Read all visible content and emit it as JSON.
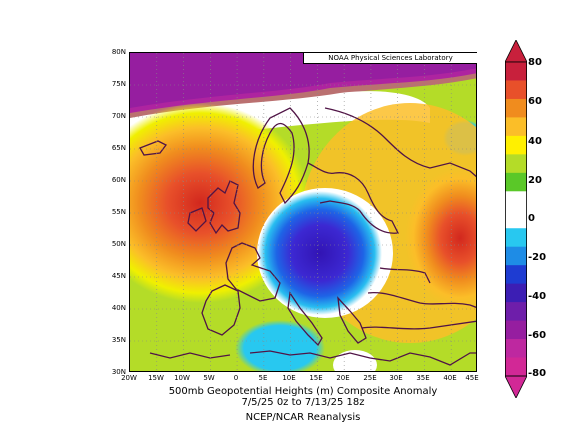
{
  "map": {
    "credit": "NOAA Physical Sciences Laboratory",
    "lat_labels": [
      "80N",
      "75N",
      "70N",
      "65N",
      "60N",
      "55N",
      "50N",
      "45N",
      "40N",
      "35N",
      "30N"
    ],
    "lon_labels": [
      "20W",
      "15W",
      "10W",
      "5W",
      "0",
      "5E",
      "10E",
      "15E",
      "20E",
      "25E",
      "30E",
      "35E",
      "40E",
      "45E"
    ],
    "extent": {
      "lon": [
        -20,
        45
      ],
      "lat": [
        30,
        80
      ]
    },
    "grid": true
  },
  "caption": {
    "line1": "500mb Geopotential Heights (m)   Composite Anomaly",
    "line2": "7/5/25 0z  to 7/13/25 18z",
    "line3": "NCEP/NCAR Reanalysis"
  },
  "colorbar": {
    "labels": [
      "80",
      "60",
      "40",
      "20",
      "0",
      "-20",
      "-40",
      "-60",
      "-80"
    ],
    "colors": [
      "#c8203c",
      "#e8502a",
      "#f08c1e",
      "#fbbe28",
      "#fff000",
      "#b4dc28",
      "#5ac828",
      "#ffffff",
      "#ffffff",
      "#28c8f0",
      "#1e8ce6",
      "#1e3cd2",
      "#3c1eb4",
      "#6e1eaa",
      "#961ea0",
      "#be28a0",
      "#d22896"
    ]
  },
  "colors": {
    "low_center": "#3214b4",
    "high_center": "#d2281e",
    "coastline": "#501446"
  }
}
